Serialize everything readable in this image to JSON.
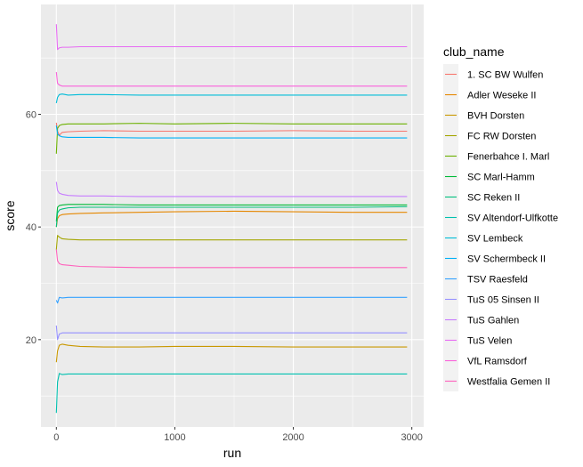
{
  "chart_data": {
    "type": "line",
    "xlabel": "run",
    "ylabel": "score",
    "xlim": [
      -130,
      3100
    ],
    "ylim": [
      4.5,
      79.5
    ],
    "xticks": [
      0,
      1000,
      2000,
      3000
    ],
    "yticks": [
      20,
      40,
      60
    ],
    "grid": true,
    "legend": {
      "title": "club_name",
      "position": "right"
    },
    "x": [
      0,
      10,
      25,
      50,
      100,
      200,
      400,
      700,
      1000,
      1500,
      2000,
      2500,
      2960
    ],
    "series": [
      {
        "name": "1. SC BW Wulfen",
        "color": "#F8766D",
        "values": [
          58.5,
          57.0,
          56.3,
          56.8,
          56.9,
          57.0,
          57.1,
          57.0,
          57.0,
          57.0,
          57.1,
          57.0,
          57.0
        ]
      },
      {
        "name": "Adler Weseke II",
        "color": "#E58700",
        "values": [
          40.0,
          41.5,
          42.0,
          42.2,
          42.3,
          42.4,
          42.5,
          42.6,
          42.7,
          42.8,
          42.7,
          42.6,
          42.6
        ]
      },
      {
        "name": "BVH Dorsten",
        "color": "#C99800",
        "values": [
          16.0,
          18.0,
          19.0,
          19.2,
          19.0,
          18.8,
          18.7,
          18.7,
          18.8,
          18.8,
          18.7,
          18.7,
          18.7
        ]
      },
      {
        "name": "FC RW Dorsten",
        "color": "#A3A500",
        "values": [
          36.0,
          38.5,
          38.2,
          37.9,
          37.8,
          37.7,
          37.7,
          37.7,
          37.7,
          37.7,
          37.7,
          37.7,
          37.7
        ]
      },
      {
        "name": "Fenerbahce I. Marl",
        "color": "#6BB100",
        "values": [
          53.0,
          57.5,
          58.0,
          58.2,
          58.3,
          58.3,
          58.3,
          58.4,
          58.3,
          58.4,
          58.3,
          58.3,
          58.3
        ]
      },
      {
        "name": "SC Marl-Hamm",
        "color": "#00BA38",
        "values": [
          41.0,
          43.5,
          43.8,
          43.9,
          44.0,
          44.0,
          44.0,
          43.9,
          43.9,
          43.9,
          43.9,
          43.9,
          43.9
        ]
      },
      {
        "name": "SC Reken II",
        "color": "#00BF7D",
        "values": [
          40.0,
          42.5,
          43.0,
          43.2,
          43.4,
          43.5,
          43.5,
          43.5,
          43.5,
          43.5,
          43.5,
          43.5,
          43.6
        ]
      },
      {
        "name": "SV Altendorf-Ulfkotte",
        "color": "#00C0AF",
        "values": [
          7.0,
          12.5,
          14.0,
          13.8,
          13.9,
          13.9,
          13.9,
          13.9,
          13.9,
          13.9,
          13.9,
          13.9,
          13.9
        ]
      },
      {
        "name": "SV Lembeck",
        "color": "#00BCD8",
        "values": [
          62.0,
          63.0,
          63.5,
          63.6,
          63.4,
          63.5,
          63.5,
          63.4,
          63.4,
          63.4,
          63.4,
          63.4,
          63.4
        ]
      },
      {
        "name": "SV Schermbeck II",
        "color": "#00B0F6",
        "values": [
          58.0,
          56.5,
          56.2,
          56.0,
          55.9,
          55.9,
          55.9,
          55.8,
          55.8,
          55.8,
          55.8,
          55.8,
          55.8
        ]
      },
      {
        "name": "TSV Raesfeld",
        "color": "#35A2FF",
        "values": [
          27.0,
          26.5,
          27.5,
          27.4,
          27.5,
          27.5,
          27.5,
          27.5,
          27.5,
          27.5,
          27.5,
          27.5,
          27.5
        ]
      },
      {
        "name": "TuS 05 Sinsen II",
        "color": "#9590FF",
        "values": [
          22.5,
          20.0,
          21.0,
          21.2,
          21.2,
          21.2,
          21.2,
          21.2,
          21.2,
          21.2,
          21.2,
          21.2,
          21.2
        ]
      },
      {
        "name": "TuS Gahlen",
        "color": "#C77CFF",
        "values": [
          48.0,
          46.5,
          46.0,
          45.8,
          45.6,
          45.5,
          45.5,
          45.4,
          45.4,
          45.4,
          45.4,
          45.4,
          45.4
        ]
      },
      {
        "name": "TuS Velen",
        "color": "#E76BF3",
        "values": [
          76.0,
          71.5,
          71.8,
          71.9,
          71.9,
          72.0,
          72.0,
          72.0,
          72.0,
          72.0,
          72.0,
          72.0,
          72.0
        ]
      },
      {
        "name": "VfL Ramsdorf",
        "color": "#FA62DB",
        "values": [
          67.5,
          65.5,
          65.2,
          65.0,
          65.0,
          65.0,
          65.0,
          65.0,
          65.0,
          65.0,
          65.0,
          65.0,
          65.0
        ]
      },
      {
        "name": "Westfalia Gemen II",
        "color": "#FF62BC",
        "values": [
          36.0,
          34.0,
          33.5,
          33.3,
          33.2,
          33.0,
          32.9,
          32.8,
          32.8,
          32.8,
          32.8,
          32.8,
          32.8
        ]
      }
    ]
  }
}
